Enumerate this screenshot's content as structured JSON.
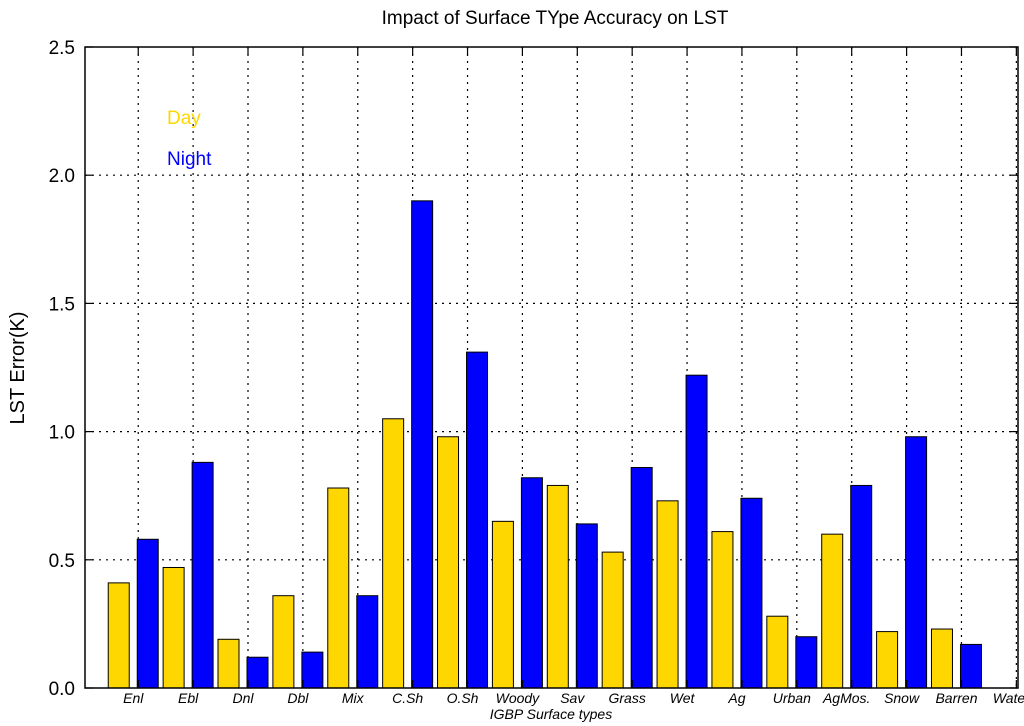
{
  "chart_data": {
    "type": "bar",
    "title": "Impact of Surface TYpe Accuracy on LST",
    "xlabel": "IGBP Surface types",
    "ylabel": "LST Error(K)",
    "ylim": [
      0.0,
      2.5
    ],
    "yticks": [
      "0.0",
      "0.5",
      "1.0",
      "1.5",
      "2.0",
      "2.5"
    ],
    "grid": true,
    "legend_position": "top-left",
    "categories": [
      "Enl",
      "Ebl",
      "Dnl",
      "Dbl",
      "Mix",
      "C.Sh",
      "O.Sh",
      "Woody",
      "Sav",
      "Grass",
      "Wet",
      "Ag",
      "Urban",
      "AgMos.",
      "Snow",
      "Barren",
      "Water"
    ],
    "series": [
      {
        "name": "Day",
        "color": "#FFD700",
        "values": [
          0.41,
          0.47,
          0.19,
          0.36,
          0.78,
          1.05,
          0.98,
          0.65,
          0.79,
          0.53,
          0.73,
          0.61,
          0.28,
          0.6,
          0.22,
          0.23,
          0.0
        ]
      },
      {
        "name": "Night",
        "color": "#0000FF",
        "values": [
          0.58,
          0.88,
          0.12,
          0.14,
          0.36,
          1.9,
          1.31,
          0.82,
          0.64,
          0.86,
          1.22,
          0.74,
          0.2,
          0.79,
          0.98,
          0.17,
          0.0
        ]
      }
    ]
  }
}
